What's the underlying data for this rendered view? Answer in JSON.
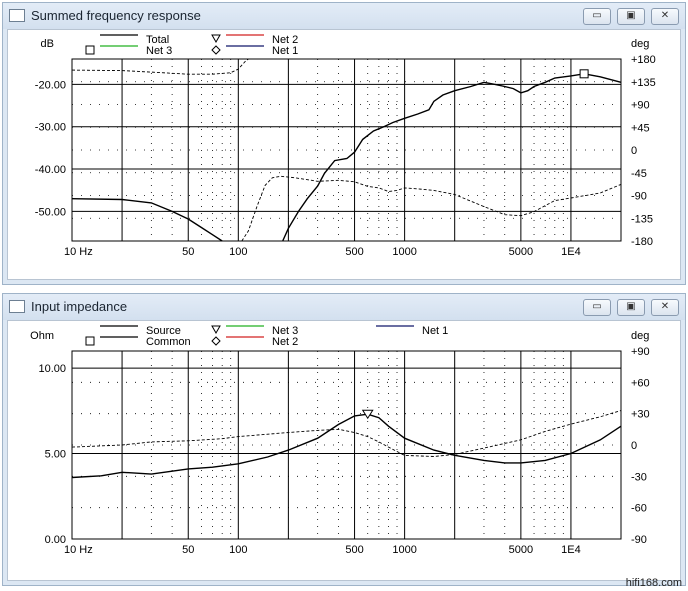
{
  "windows": [
    {
      "title": "Summed frequency response",
      "buttons": [
        "▭",
        "▣",
        "✕"
      ],
      "icon": "graph-window-icon"
    },
    {
      "title": "Input impedance",
      "buttons": [
        "▭",
        "▣",
        "✕"
      ],
      "icon": "graph-window-icon"
    }
  ],
  "watermark": "hifi168.com",
  "chart_data": [
    {
      "type": "line",
      "title": "Summed frequency response",
      "x_scale": "log",
      "xlim": [
        10,
        20000
      ],
      "x_ticks": [
        {
          "v": 10,
          "label": "10 Hz"
        },
        {
          "v": 50,
          "label": "50"
        },
        {
          "v": 100,
          "label": "100"
        },
        {
          "v": 500,
          "label": "500"
        },
        {
          "v": 1000,
          "label": "1000"
        },
        {
          "v": 5000,
          "label": "5000"
        },
        {
          "v": 10000,
          "label": "1E4"
        }
      ],
      "ylabel": "dB",
      "ylim": [
        -57,
        -14
      ],
      "y_ticks": [
        {
          "v": -20,
          "label": "-20.00"
        },
        {
          "v": -30,
          "label": "-30.00"
        },
        {
          "v": -40,
          "label": "-40.00"
        },
        {
          "v": -50,
          "label": "-50.00"
        }
      ],
      "y2label": "deg",
      "y2lim": [
        -180,
        180
      ],
      "y2_ticks": [
        {
          "v": 180,
          "label": "+180"
        },
        {
          "v": 135,
          "label": "+135"
        },
        {
          "v": 90,
          "label": "+90"
        },
        {
          "v": 45,
          "label": "+45"
        },
        {
          "v": 0,
          "label": "0"
        },
        {
          "v": -45,
          "label": "-45"
        },
        {
          "v": -90,
          "label": "-90"
        },
        {
          "v": -135,
          "label": "-135"
        },
        {
          "v": -180,
          "label": "-180"
        }
      ],
      "legend": [
        {
          "name": "Total",
          "color": "#000000",
          "marker": "none"
        },
        {
          "name": "Net 2",
          "color": "#d22020",
          "marker": "triangle"
        },
        {
          "name": "Net 3",
          "color": "#20b020",
          "marker": "square"
        },
        {
          "name": "Net 1",
          "color": "#10186a",
          "marker": "diamond"
        }
      ],
      "grid": true,
      "series": [
        {
          "name": "Total",
          "axis": "left",
          "style": "solid",
          "points": [
            [
              10,
              -47
            ],
            [
              20,
              -47.2
            ],
            [
              30,
              -48
            ],
            [
              40,
              -50
            ],
            [
              50,
              -51.8
            ],
            [
              60,
              -53.8
            ],
            [
              70,
              -55.5
            ],
            [
              80,
              -57
            ]
          ]
        },
        {
          "name": "Total",
          "axis": "left",
          "style": "solid",
          "points": [
            [
              185,
              -57
            ],
            [
              200,
              -54
            ],
            [
              230,
              -50
            ],
            [
              260,
              -47
            ],
            [
              300,
              -44
            ],
            [
              330,
              -41
            ],
            [
              380,
              -38
            ],
            [
              450,
              -37.5
            ],
            [
              500,
              -36
            ],
            [
              560,
              -33
            ],
            [
              650,
              -31
            ],
            [
              750,
              -30
            ],
            [
              850,
              -29
            ],
            [
              1000,
              -28
            ],
            [
              1200,
              -27
            ],
            [
              1400,
              -26
            ],
            [
              1500,
              -24
            ],
            [
              1700,
              -22.5
            ],
            [
              2000,
              -21.5
            ],
            [
              2500,
              -20.5
            ],
            [
              3000,
              -19.5
            ],
            [
              3500,
              -20
            ],
            [
              4000,
              -20.5
            ],
            [
              4500,
              -21
            ],
            [
              5000,
              -22
            ],
            [
              5500,
              -21.5
            ],
            [
              6000,
              -20.5
            ],
            [
              7000,
              -19.5
            ],
            [
              8000,
              -18.5
            ],
            [
              10000,
              -18
            ],
            [
              12000,
              -17.5
            ],
            [
              15000,
              -18.2
            ],
            [
              20000,
              -19.5
            ]
          ]
        },
        {
          "name": "Total phase",
          "axis": "right",
          "style": "dashed",
          "points": [
            [
              10,
              158
            ],
            [
              20,
              157
            ],
            [
              30,
              154
            ],
            [
              50,
              150
            ],
            [
              70,
              150
            ],
            [
              90,
              153
            ],
            [
              100,
              160
            ],
            [
              110,
              175
            ],
            [
              115,
              180
            ]
          ]
        },
        {
          "name": "Total phase",
          "axis": "right",
          "style": "dashed",
          "points": [
            [
              105,
              -180
            ],
            [
              115,
              -160
            ],
            [
              130,
              -110
            ],
            [
              145,
              -70
            ],
            [
              160,
              -55
            ],
            [
              180,
              -52
            ],
            [
              220,
              -55
            ],
            [
              300,
              -62
            ],
            [
              400,
              -60
            ],
            [
              500,
              -63
            ],
            [
              600,
              -72
            ],
            [
              700,
              -75
            ],
            [
              800,
              -82
            ],
            [
              900,
              -80
            ],
            [
              1000,
              -75
            ],
            [
              1200,
              -77
            ],
            [
              1500,
              -80
            ],
            [
              2000,
              -88
            ],
            [
              3000,
              -112
            ],
            [
              4000,
              -128
            ],
            [
              5000,
              -130
            ],
            [
              6000,
              -122
            ],
            [
              7000,
              -110
            ],
            [
              8000,
              -100
            ],
            [
              10000,
              -95
            ],
            [
              15000,
              -85
            ],
            [
              20000,
              -68
            ]
          ]
        }
      ],
      "markers": [
        {
          "type": "square",
          "x": 12000,
          "y": -17.5
        }
      ]
    },
    {
      "type": "line",
      "title": "Input impedance",
      "x_scale": "log",
      "xlim": [
        10,
        20000
      ],
      "x_ticks": [
        {
          "v": 10,
          "label": "10 Hz"
        },
        {
          "v": 50,
          "label": "50"
        },
        {
          "v": 100,
          "label": "100"
        },
        {
          "v": 500,
          "label": "500"
        },
        {
          "v": 1000,
          "label": "1000"
        },
        {
          "v": 5000,
          "label": "5000"
        },
        {
          "v": 10000,
          "label": "1E4"
        }
      ],
      "ylabel": "Ohm",
      "ylim": [
        0,
        11
      ],
      "y_ticks": [
        {
          "v": 10,
          "label": "10.00"
        },
        {
          "v": 5,
          "label": "5.00"
        },
        {
          "v": 0,
          "label": "0.00"
        }
      ],
      "y2label": "deg",
      "y2lim": [
        -90,
        90
      ],
      "y2_ticks": [
        {
          "v": 90,
          "label": "+90"
        },
        {
          "v": 60,
          "label": "+60"
        },
        {
          "v": 30,
          "label": "+30"
        },
        {
          "v": 0,
          "label": "0"
        },
        {
          "v": -30,
          "label": "-30"
        },
        {
          "v": -60,
          "label": "-60"
        },
        {
          "v": -90,
          "label": "-90"
        }
      ],
      "legend": [
        {
          "name": "Source",
          "color": "#000000",
          "marker": "none"
        },
        {
          "name": "Net 3",
          "color": "#20b020",
          "marker": "triangle"
        },
        {
          "name": "Net 1",
          "color": "#10186a",
          "marker": "none"
        },
        {
          "name": "Common",
          "color": "#000000",
          "marker": "square"
        },
        {
          "name": "Net 2",
          "color": "#d22020",
          "marker": "diamond"
        }
      ],
      "grid": true,
      "series": [
        {
          "name": "Source",
          "axis": "left",
          "style": "solid",
          "points": [
            [
              10,
              3.6
            ],
            [
              15,
              3.7
            ],
            [
              20,
              3.9
            ],
            [
              30,
              3.8
            ],
            [
              50,
              4.1
            ],
            [
              70,
              4.2
            ],
            [
              100,
              4.4
            ],
            [
              150,
              4.8
            ],
            [
              200,
              5.2
            ],
            [
              300,
              5.9
            ],
            [
              400,
              6.7
            ],
            [
              500,
              7.2
            ],
            [
              600,
              7.3
            ],
            [
              700,
              7.1
            ],
            [
              800,
              6.6
            ],
            [
              1000,
              5.9
            ],
            [
              1500,
              5.2
            ],
            [
              2000,
              4.9
            ],
            [
              3000,
              4.6
            ],
            [
              4000,
              4.45
            ],
            [
              5000,
              4.45
            ],
            [
              7000,
              4.6
            ],
            [
              10000,
              5.0
            ],
            [
              15000,
              5.8
            ],
            [
              20000,
              6.6
            ]
          ]
        },
        {
          "name": "Source phase",
          "axis": "right",
          "style": "dashed",
          "points": [
            [
              10,
              -2
            ],
            [
              20,
              0
            ],
            [
              30,
              3
            ],
            [
              50,
              4
            ],
            [
              80,
              6
            ],
            [
              100,
              8
            ],
            [
              200,
              12
            ],
            [
              300,
              14
            ],
            [
              400,
              15
            ],
            [
              500,
              12
            ],
            [
              600,
              8
            ],
            [
              700,
              3
            ],
            [
              800,
              -2
            ],
            [
              1000,
              -10
            ],
            [
              1500,
              -11
            ],
            [
              2000,
              -9
            ],
            [
              3000,
              -3
            ],
            [
              5000,
              5
            ],
            [
              7000,
              13
            ],
            [
              10000,
              20
            ],
            [
              15000,
              27
            ],
            [
              20000,
              33
            ]
          ]
        }
      ],
      "markers": [
        {
          "type": "triangle",
          "x": 600,
          "y": 7.3
        }
      ]
    }
  ]
}
